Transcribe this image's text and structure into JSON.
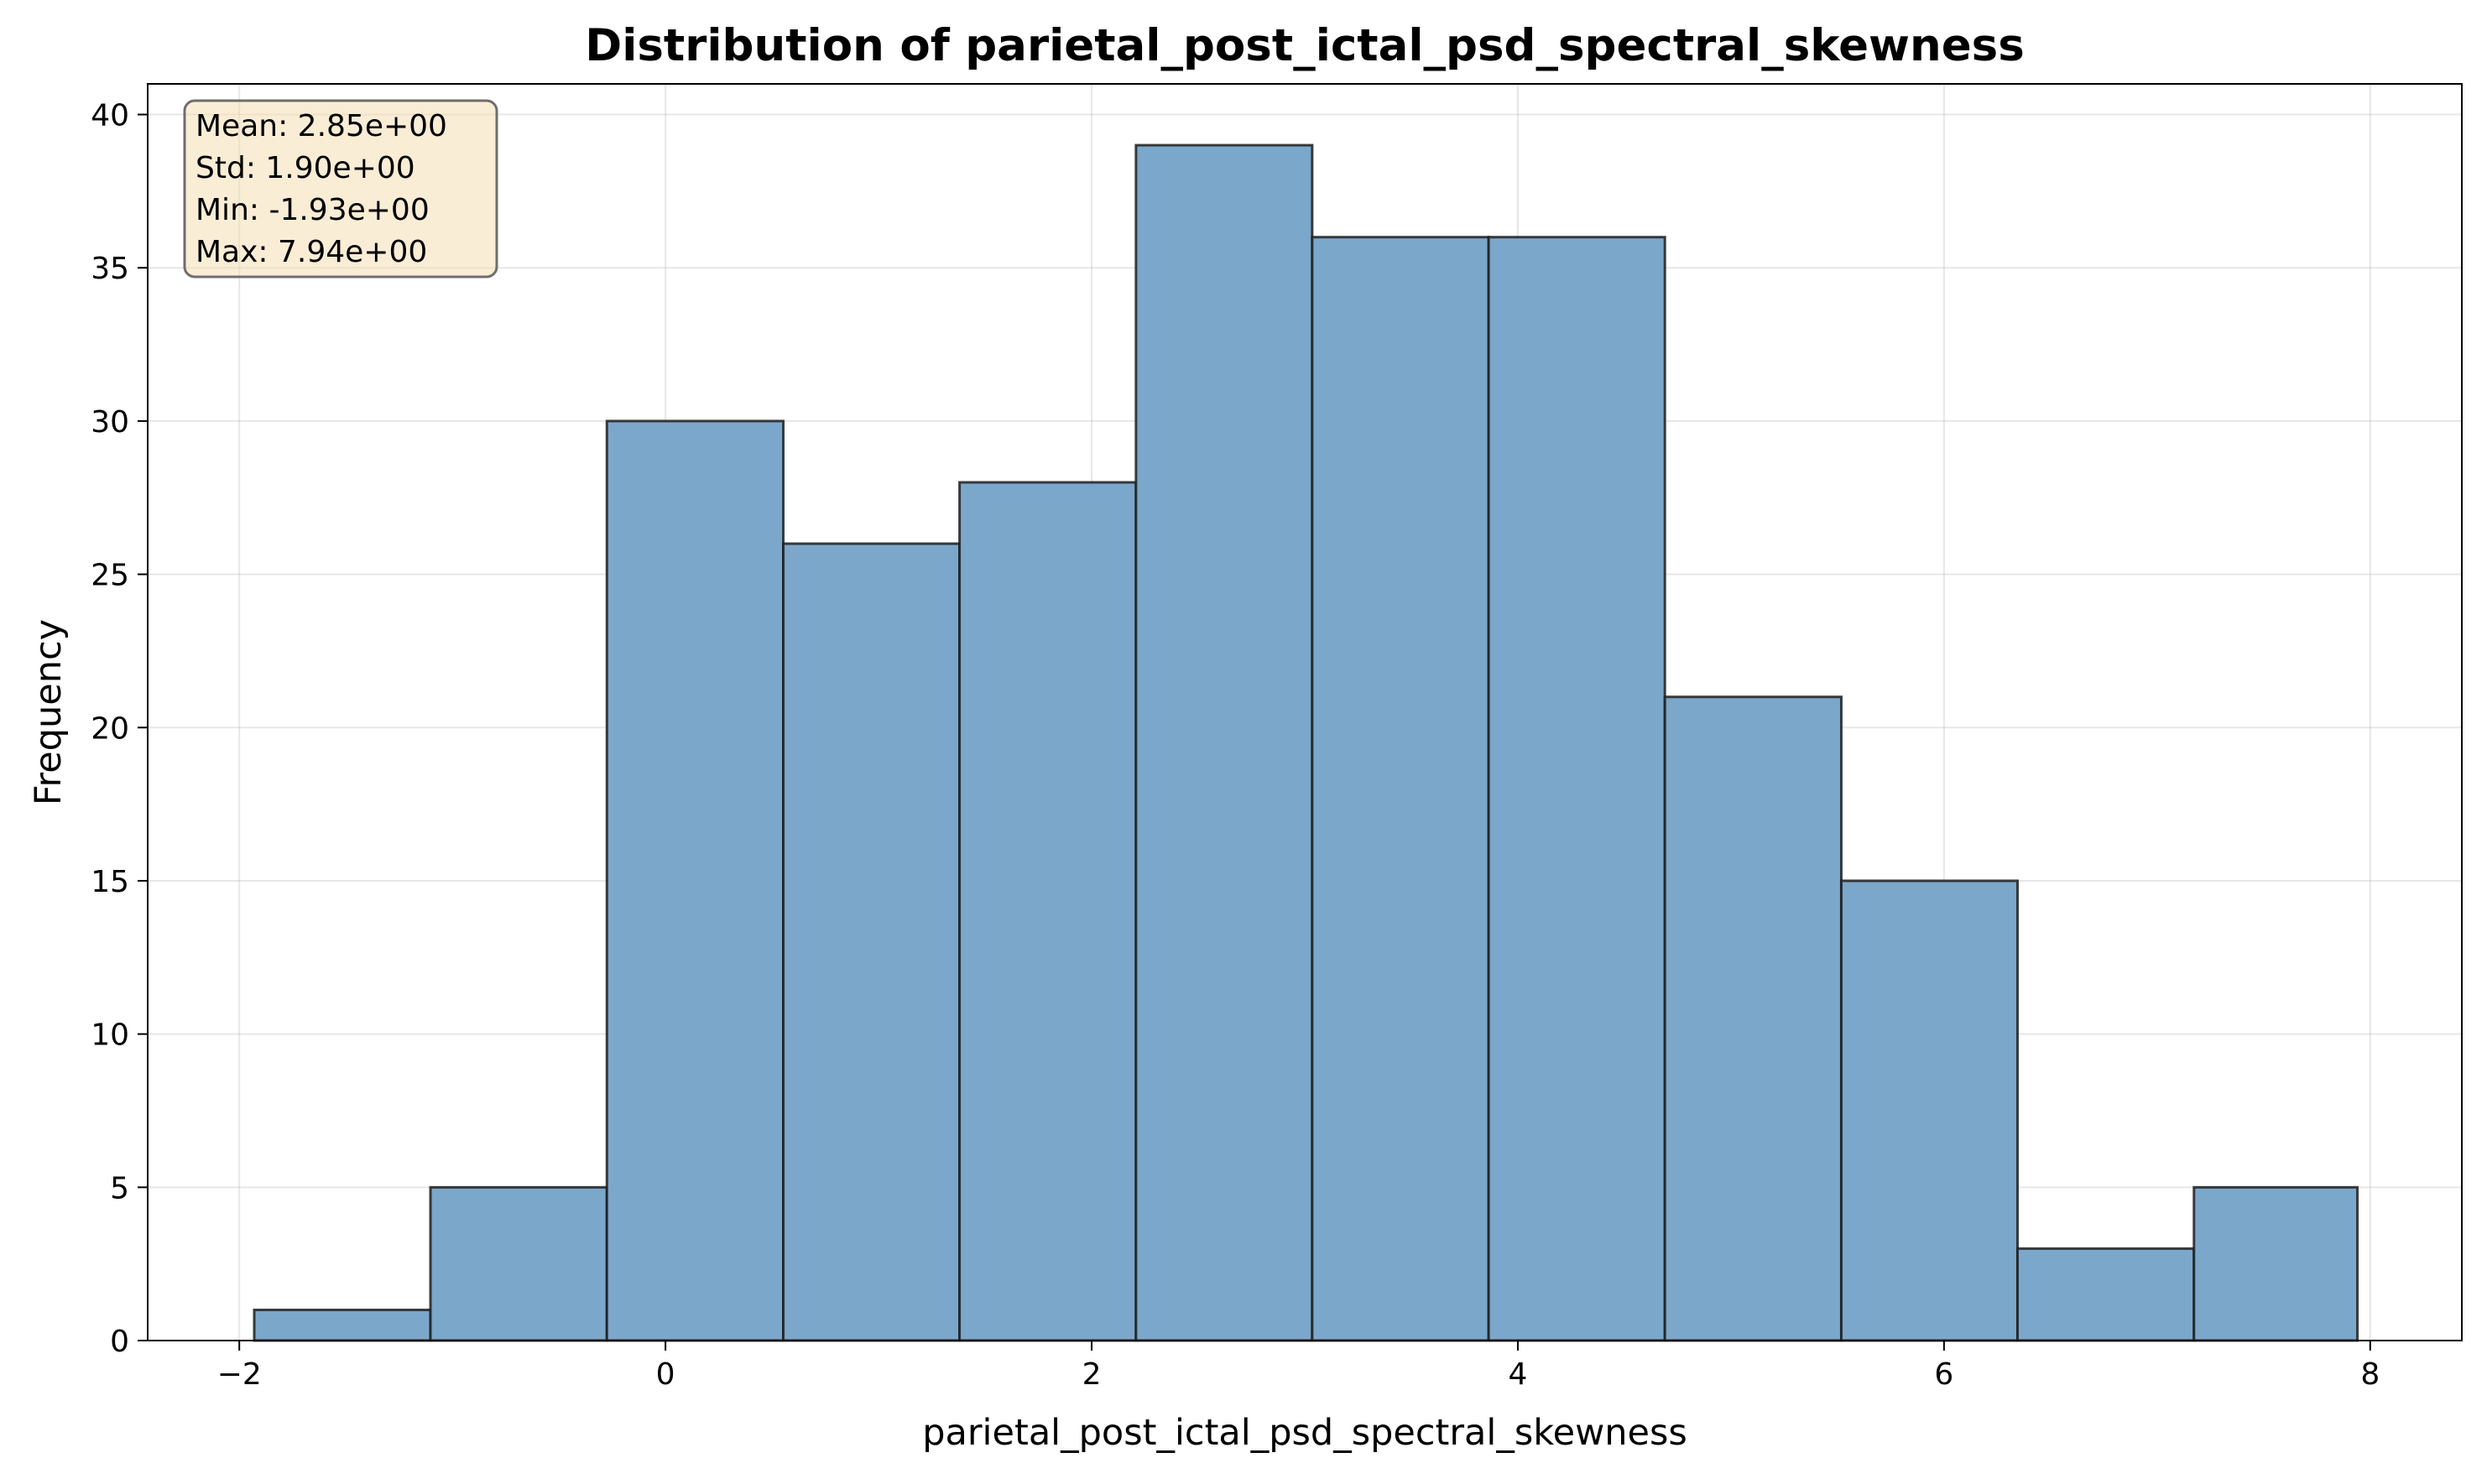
{
  "chart_data": {
    "type": "bar",
    "title": "Distribution of parietal_post_ictal_psd_spectral_skewness",
    "xlabel": "parietal_post_ictal_psd_spectral_skewness",
    "ylabel": "Frequency",
    "bins": [
      {
        "start": -1.93,
        "end": -1.103,
        "count": 1
      },
      {
        "start": -1.103,
        "end": -0.275,
        "count": 5
      },
      {
        "start": -0.275,
        "end": 0.553,
        "count": 30
      },
      {
        "start": 0.553,
        "end": 1.38,
        "count": 26
      },
      {
        "start": 1.38,
        "end": 2.208,
        "count": 28
      },
      {
        "start": 2.208,
        "end": 3.035,
        "count": 39
      },
      {
        "start": 3.035,
        "end": 3.863,
        "count": 36
      },
      {
        "start": 3.863,
        "end": 4.69,
        "count": 36
      },
      {
        "start": 4.69,
        "end": 5.518,
        "count": 21
      },
      {
        "start": 5.518,
        "end": 6.345,
        "count": 15
      },
      {
        "start": 6.345,
        "end": 7.173,
        "count": 3
      },
      {
        "start": 7.173,
        "end": 7.94,
        "count": 5
      }
    ],
    "xlim": [
      -2.43,
      8.43
    ],
    "ylim": [
      0,
      41
    ],
    "x_ticks": [
      -2,
      0,
      2,
      4,
      6,
      8
    ],
    "x_tick_labels": [
      "−2",
      "0",
      "2",
      "4",
      "6",
      "8"
    ],
    "y_ticks": [
      0,
      5,
      10,
      15,
      20,
      25,
      30,
      35,
      40
    ],
    "y_tick_labels": [
      "0",
      "5",
      "10",
      "15",
      "20",
      "25",
      "30",
      "35",
      "40"
    ],
    "grid": true,
    "bar_fill_color": "#7ba7cb",
    "bar_edge_color": "#1f1f1f",
    "stats_box": {
      "lines": [
        "Mean: 2.85e+00",
        "Std: 1.90e+00",
        "Min: -1.93e+00",
        "Max: 7.94e+00"
      ],
      "placement": "top-left",
      "fill_color": "#f5deb3",
      "edge_color": "#6e6e6e"
    }
  }
}
